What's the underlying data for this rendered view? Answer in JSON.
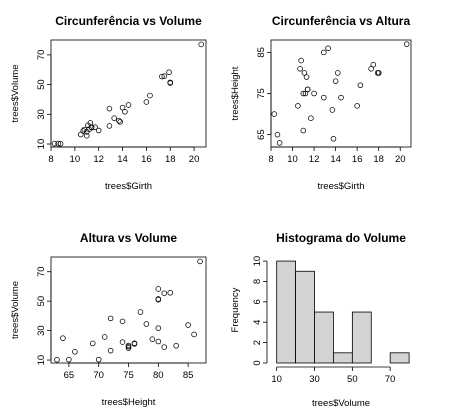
{
  "chart_data": [
    {
      "type": "scatter",
      "title": "Circunferência vs Volume",
      "xlabel": "trees$Girth",
      "ylabel": "trees$Volume",
      "xlim": [
        8,
        21
      ],
      "ylim": [
        8,
        80
      ],
      "xticks": [
        8,
        10,
        12,
        14,
        16,
        18,
        20
      ],
      "yticks": [
        10,
        30,
        50,
        70
      ],
      "x": [
        8.3,
        8.6,
        8.8,
        10.5,
        10.7,
        10.8,
        11.0,
        11.0,
        11.1,
        11.2,
        11.3,
        11.4,
        11.4,
        11.7,
        12.0,
        12.9,
        12.9,
        13.3,
        13.7,
        13.8,
        14.0,
        14.2,
        14.5,
        16.0,
        16.3,
        17.3,
        17.5,
        17.9,
        18.0,
        18.0,
        20.6
      ],
      "y": [
        10.3,
        10.3,
        10.2,
        16.4,
        18.8,
        19.7,
        15.6,
        18.2,
        22.6,
        19.9,
        24.2,
        21.0,
        21.4,
        21.3,
        19.1,
        22.2,
        33.8,
        27.4,
        25.7,
        24.9,
        34.5,
        31.7,
        36.3,
        38.3,
        42.6,
        55.4,
        55.7,
        58.3,
        51.5,
        51.0,
        77.0
      ]
    },
    {
      "type": "scatter",
      "title": "Circunferência vs Altura",
      "xlabel": "trees$Girth",
      "ylabel": "trees$Height",
      "xlim": [
        8,
        21
      ],
      "ylim": [
        62,
        88
      ],
      "xticks": [
        8,
        10,
        12,
        14,
        16,
        18,
        20
      ],
      "yticks": [
        65,
        75,
        85
      ],
      "x": [
        8.3,
        8.6,
        8.8,
        10.5,
        10.7,
        10.8,
        11.0,
        11.0,
        11.1,
        11.2,
        11.3,
        11.4,
        11.4,
        11.7,
        12.0,
        12.9,
        12.9,
        13.3,
        13.7,
        13.8,
        14.0,
        14.2,
        14.5,
        16.0,
        16.3,
        17.3,
        17.5,
        17.9,
        18.0,
        18.0,
        20.6
      ],
      "y": [
        70,
        65,
        63,
        72,
        81,
        83,
        66,
        75,
        80,
        75,
        79,
        76,
        76,
        69,
        75,
        74,
        85,
        86,
        71,
        64,
        78,
        80,
        74,
        72,
        77,
        81,
        82,
        80,
        80,
        80,
        87
      ]
    },
    {
      "type": "scatter",
      "title": "Altura vs Volume",
      "xlabel": "trees$Height",
      "ylabel": "trees$Volume",
      "xlim": [
        62,
        88
      ],
      "ylim": [
        8,
        80
      ],
      "xticks": [
        65,
        70,
        75,
        80,
        85
      ],
      "yticks": [
        10,
        30,
        50,
        70
      ],
      "x": [
        70,
        65,
        63,
        72,
        81,
        83,
        66,
        75,
        80,
        75,
        79,
        76,
        76,
        69,
        75,
        74,
        85,
        86,
        71,
        64,
        78,
        80,
        74,
        72,
        77,
        81,
        82,
        80,
        80,
        80,
        87
      ],
      "y": [
        10.3,
        10.3,
        10.2,
        16.4,
        18.8,
        19.7,
        15.6,
        18.2,
        22.6,
        19.9,
        24.2,
        21.0,
        21.4,
        21.3,
        19.1,
        22.2,
        33.8,
        27.4,
        25.7,
        24.9,
        34.5,
        31.7,
        36.3,
        38.3,
        42.6,
        55.4,
        55.7,
        58.3,
        51.5,
        51.0,
        77.0
      ]
    },
    {
      "type": "bar",
      "title": "Histograma do Volume",
      "xlabel": "trees$Volume",
      "ylabel": "Frequency",
      "bin_edges": [
        10,
        20,
        30,
        40,
        50,
        60,
        70,
        80
      ],
      "values": [
        10,
        9,
        5,
        1,
        5,
        0,
        1
      ],
      "xlim": [
        7,
        81
      ],
      "ylim": [
        0,
        10.4
      ],
      "xticks": [
        10,
        30,
        50,
        70
      ],
      "yticks": [
        0,
        2,
        4,
        6,
        8,
        10
      ],
      "bar_color": "#d3d3d3"
    }
  ]
}
